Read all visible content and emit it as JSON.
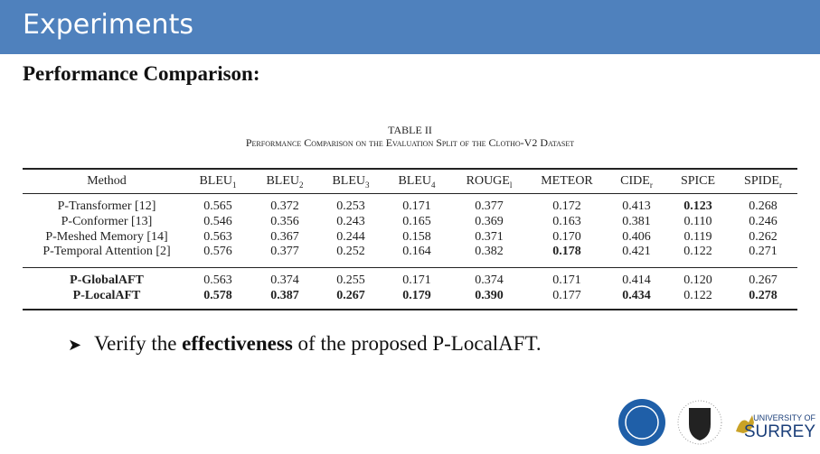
{
  "header": {
    "title": "Experiments"
  },
  "subtitle": "Performance Comparison:",
  "table": {
    "number": "TABLE II",
    "caption": "Performance Comparison on the Evaluation Split of the Clotho-V2 Dataset",
    "columns": [
      {
        "text": "Method"
      },
      {
        "text": "BLEU",
        "sub": "1"
      },
      {
        "text": "BLEU",
        "sub": "2"
      },
      {
        "text": "BLEU",
        "sub": "3"
      },
      {
        "text": "BLEU",
        "sub": "4"
      },
      {
        "text": "ROUGE",
        "sub": "l"
      },
      {
        "text": "METEOR"
      },
      {
        "text": "CIDE",
        "sub": "r"
      },
      {
        "text": "SPICE"
      },
      {
        "text": "SPIDE",
        "sub": "r"
      }
    ],
    "groups": [
      {
        "bold_method": false,
        "rows": [
          {
            "method": "P-Transformer [12]",
            "cells": [
              "0.565",
              "0.372",
              "0.253",
              "0.171",
              "0.377",
              "0.172",
              "0.413",
              {
                "text": "0.123",
                "bold": true
              },
              "0.268"
            ]
          },
          {
            "method": "P-Conformer [13]",
            "cells": [
              "0.546",
              "0.356",
              "0.243",
              "0.165",
              "0.369",
              "0.163",
              "0.381",
              "0.110",
              "0.246"
            ]
          },
          {
            "method": "P-Meshed Memory [14]",
            "cells": [
              "0.563",
              "0.367",
              "0.244",
              "0.158",
              "0.371",
              "0.170",
              "0.406",
              "0.119",
              "0.262"
            ]
          },
          {
            "method": "P-Temporal Attention [2]",
            "cells": [
              "0.576",
              "0.377",
              "0.252",
              "0.164",
              "0.382",
              {
                "text": "0.178",
                "bold": true
              },
              "0.421",
              "0.122",
              "0.271"
            ]
          }
        ]
      },
      {
        "bold_method": true,
        "rows": [
          {
            "method": "P-GlobalAFT",
            "cells": [
              "0.563",
              "0.374",
              "0.255",
              "0.171",
              "0.374",
              "0.171",
              "0.414",
              "0.120",
              "0.267"
            ]
          },
          {
            "method": "P-LocalAFT",
            "cells": [
              {
                "text": "0.578",
                "bold": true
              },
              {
                "text": "0.387",
                "bold": true
              },
              {
                "text": "0.267",
                "bold": true
              },
              {
                "text": "0.179",
                "bold": true
              },
              {
                "text": "0.390",
                "bold": true
              },
              "0.177",
              {
                "text": "0.434",
                "bold": true
              },
              "0.122",
              {
                "text": "0.278",
                "bold": true
              }
            ]
          }
        ]
      }
    ]
  },
  "bullet": {
    "before": "Verify the ",
    "emphasis": "effectiveness",
    "after": " of the proposed P-LocalAFT."
  },
  "logos": {
    "surrey_top": "UNIVERSITY OF",
    "surrey_name": "SURREY"
  }
}
